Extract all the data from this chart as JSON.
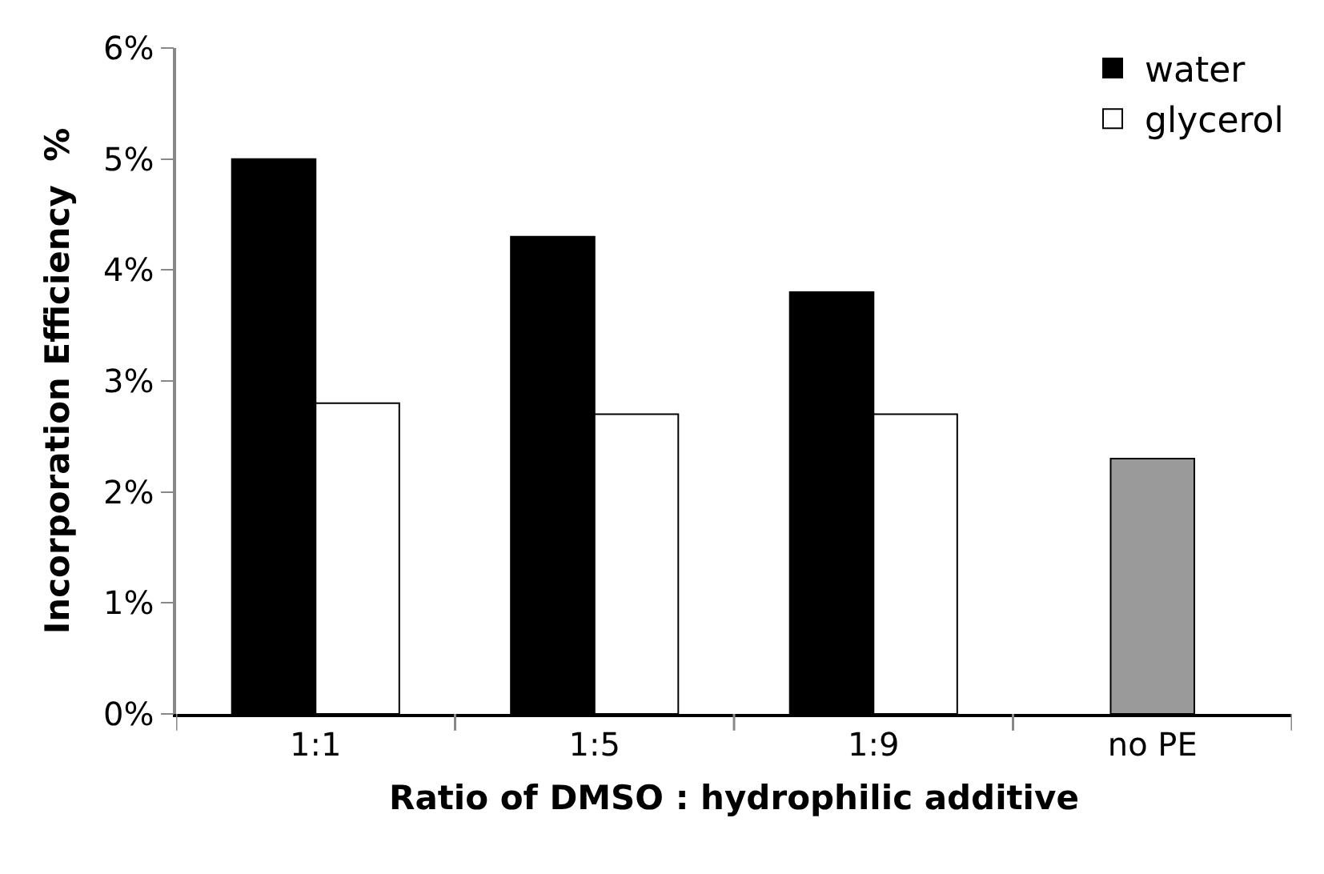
{
  "chart_data": {
    "type": "bar",
    "xlabel": "Ratio of DMSO : hydrophilic additive",
    "ylabel": "Incorporation Efficiency  %",
    "categories": [
      "1:1",
      "1:5",
      "1:9",
      "no PE"
    ],
    "series": [
      {
        "name": "water",
        "color": "#000000",
        "values": [
          5.0,
          4.3,
          3.8,
          null
        ]
      },
      {
        "name": "glycerol",
        "color": "#ffffff",
        "values": [
          2.8,
          2.7,
          2.7,
          null
        ]
      },
      {
        "color": "#9a9a9a",
        "values": [
          null,
          null,
          null,
          2.3
        ]
      }
    ],
    "ylim": [
      0,
      6
    ],
    "yticks": [
      {
        "value": 0,
        "label": "0%"
      },
      {
        "value": 1,
        "label": "1%"
      },
      {
        "value": 2,
        "label": "2%"
      },
      {
        "value": 3,
        "label": "3%"
      },
      {
        "value": 4,
        "label": "4%"
      },
      {
        "value": 5,
        "label": "5%"
      },
      {
        "value": 6,
        "label": "6%"
      }
    ],
    "legend": "top right"
  }
}
